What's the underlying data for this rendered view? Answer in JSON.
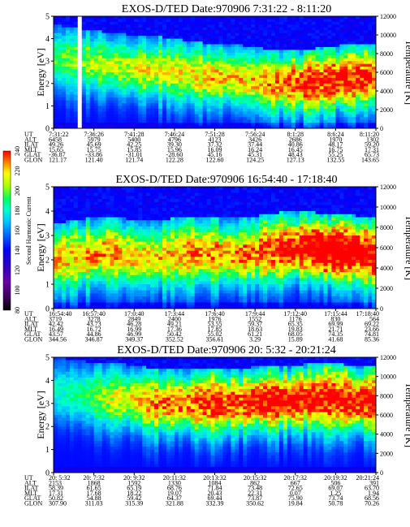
{
  "chart_data": [
    {
      "type": "heatmap",
      "title": "EXOS-D/TED   Date:970906  7:31:22 - 8:11:20",
      "ylabel": "Energy [eV]",
      "ylim": [
        0,
        5
      ],
      "yticks": [
        "0",
        "1",
        "2",
        "3",
        "4",
        "5"
      ],
      "y2label": "Temperature [K]",
      "y2lim": [
        0,
        12000
      ],
      "y2ticks": [
        "0",
        "2000",
        "4000",
        "6000",
        "8000",
        "10000",
        "12000"
      ],
      "row_labels": [
        "UT",
        "ALT",
        "ILAT",
        "MLT",
        "GLAT",
        "GLON"
      ],
      "columns": [
        [
          "7:31:22",
          "6458",
          "49.26",
          "15.65",
          "-36.87",
          "121.17"
        ],
        [
          "7:36:26",
          "5979",
          "45.69",
          "15.75",
          "-33.86",
          "121.40"
        ],
        [
          "7:41:28",
          "5400",
          "42.25",
          "15.85",
          "-31.01",
          "121.74"
        ],
        [
          "7:46:24",
          "4796",
          "39.30",
          "15.96",
          "-28.60",
          "122.28"
        ],
        [
          "7:51:28",
          "4123",
          "37.32",
          "16.09",
          "45.16",
          "122.60"
        ],
        [
          "7:56:24",
          "3426",
          "37.44",
          "16.24",
          "45.31",
          "124.25"
        ],
        [
          "8:1:28",
          "2686",
          "40.86",
          "16.45",
          "48.43",
          "127.13"
        ],
        [
          "8:6:24",
          "1970",
          "48.17",
          "16.75",
          "55.25",
          "132.55"
        ],
        [
          "8:11:20",
          "1302",
          "59.20",
          "17.31",
          "65.73",
          "143.65"
        ]
      ],
      "band_center_ev": [
        3.1,
        3.0,
        2.9,
        2.8,
        2.7,
        2.6,
        2.6,
        2.5,
        2.4,
        2.3,
        2.3,
        2.2,
        2.1,
        2.0,
        2.0,
        2.0,
        2.1,
        2.2,
        2.2,
        2.3
      ],
      "band_intensity": [
        0.35,
        0.4,
        0.45,
        0.45,
        0.45,
        0.5,
        0.5,
        0.5,
        0.5,
        0.55,
        0.55,
        0.55,
        0.55,
        0.6,
        0.65,
        0.7,
        0.7,
        0.75,
        0.7,
        0.7
      ],
      "data_gap_time_fraction": [
        0.05,
        0.1
      ]
    },
    {
      "type": "heatmap",
      "title": "EXOS-D/TED   Date:970906  16:54:40 - 17:18:40",
      "ylabel": "Energy [eV]",
      "ylim": [
        0,
        5
      ],
      "yticks": [
        "0",
        "1",
        "2",
        "3",
        "4",
        "5"
      ],
      "y2label": "Temperature [K]",
      "y2lim": [
        0,
        12000
      ],
      "y2ticks": [
        "0",
        "2000",
        "4000",
        "6000",
        "8000",
        "10000",
        "12000"
      ],
      "row_labels": [
        "UT",
        "ALT",
        "ILAT",
        "MLT",
        "GLAT",
        "GLON"
      ],
      "columns": [
        [
          "16:54:40",
          "3719",
          "42.42",
          "16.49",
          "43.57",
          "344.56"
        ],
        [
          "16:57:40",
          "3278",
          "43.73",
          "16.72",
          "44.86",
          "346.87"
        ],
        [
          "17:0:40",
          "2849",
          "46.28",
          "16.99",
          "46.99",
          "349.37"
        ],
        [
          "17:3:44",
          "2400",
          "49.21",
          "17.36",
          "50.42",
          "352.52"
        ],
        [
          "17:6:40",
          "1976",
          "53.55",
          "17.85",
          "55.02",
          "356.61"
        ],
        [
          "17:9:44",
          "1552",
          "59.37",
          "18.63",
          "61.21",
          "3.29"
        ],
        [
          "17:12:40",
          "1176",
          "65.35",
          "19.83",
          "68.05",
          "15.89"
        ],
        [
          "17:15:44",
          "830",
          "69.99",
          "21.71",
          "74.35",
          "41.68"
        ],
        [
          "17:18:40",
          "564",
          "69.22",
          "23.66",
          "74.81",
          "85.36"
        ]
      ],
      "band_center_ev": [
        2.0,
        2.1,
        2.2,
        2.3,
        2.2,
        2.1,
        2.1,
        2.2,
        2.3,
        2.3,
        2.2,
        2.2,
        2.3,
        2.4,
        2.5,
        2.5,
        2.4,
        2.4,
        2.3,
        2.2
      ],
      "band_intensity": [
        0.55,
        0.55,
        0.6,
        0.6,
        0.55,
        0.55,
        0.55,
        0.55,
        0.6,
        0.6,
        0.6,
        0.6,
        0.65,
        0.7,
        0.75,
        0.8,
        0.85,
        0.85,
        0.8,
        0.8
      ]
    },
    {
      "type": "heatmap",
      "title": "EXOS-D/TED   Date:970906  20: 5:32 - 20:21:24",
      "ylabel": "Energy [eV]",
      "ylim": [
        0,
        5
      ],
      "yticks": [
        "0",
        "1",
        "2",
        "3",
        "4",
        "5"
      ],
      "y2label": "Temperature [K]",
      "y2lim": [
        0,
        12000
      ],
      "y2ticks": [
        "0",
        "2000",
        "4000",
        "6000",
        "8000",
        "10000",
        "12000"
      ],
      "row_labels": [
        "UT",
        "ALT",
        "ILAT",
        "MLT",
        "GLAT",
        "GLON"
      ],
      "columns": [
        [
          "20: 5:32",
          "2153",
          "58.39",
          "17.31",
          "50.82",
          "307.90"
        ],
        [
          "20: 7:32",
          "1868",
          "61.65",
          "17.68",
          "54.88",
          "311.03"
        ],
        [
          "20: 9:32",
          "1592",
          "65.19",
          "18.22",
          "59.42",
          "315.39"
        ],
        [
          "20:11:32",
          "1330",
          "68.76",
          "19.07",
          "64.37",
          "321.88"
        ],
        [
          "20:13:32",
          "1084",
          "71.84",
          "20.43",
          "69.44",
          "332.39"
        ],
        [
          "20:15:32",
          "862",
          "73.48",
          "22.31",
          "73.87",
          "350.62"
        ],
        [
          "20:17:32",
          "667",
          "72.65",
          "0.07",
          "75.90",
          "19.84"
        ],
        [
          "20:19:32",
          "506",
          "69.07",
          "1.25",
          "73.74",
          "50.78"
        ],
        [
          "20:21:24",
          "391",
          "63.70",
          "1.94",
          "68.56",
          "70.26"
        ]
      ],
      "band_center_ev": [
        3.5,
        3.4,
        3.3,
        3.2,
        3.2,
        3.1,
        3.0,
        3.0,
        3.0,
        3.0,
        3.0,
        3.0,
        3.1,
        3.1,
        3.1,
        3.2,
        3.2,
        3.2,
        3.1,
        3.1
      ],
      "band_intensity": [
        0.25,
        0.3,
        0.35,
        0.45,
        0.5,
        0.55,
        0.6,
        0.65,
        0.65,
        0.7,
        0.7,
        0.7,
        0.75,
        0.75,
        0.75,
        0.75,
        0.75,
        0.75,
        0.75,
        0.75
      ]
    }
  ],
  "colorbar": {
    "label": "Second Harmonic Current",
    "range": [
      80,
      240
    ],
    "ticks": [
      "80",
      "100",
      "120",
      "140",
      "160",
      "180",
      "200",
      "220",
      "240"
    ]
  },
  "colors": {
    "background": "#ffffff",
    "scale": [
      "#000000",
      "#3a0057",
      "#6a00a8",
      "#2a00c8",
      "#0000ff",
      "#0070ff",
      "#00c8ff",
      "#00ffd0",
      "#00ff60",
      "#a8ff00",
      "#ffff00",
      "#ff8000",
      "#ff0000"
    ]
  }
}
